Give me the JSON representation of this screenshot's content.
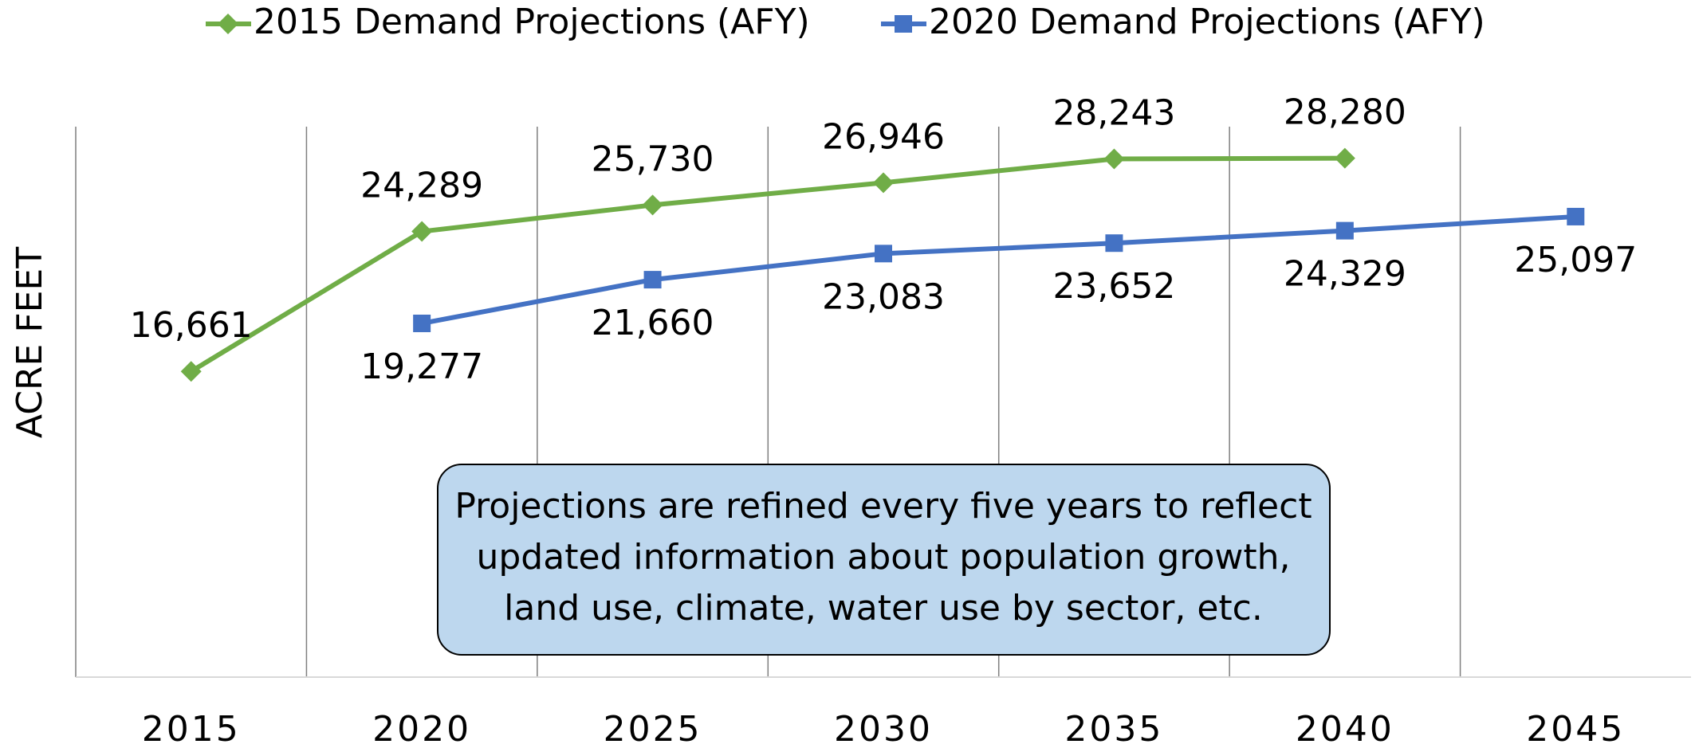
{
  "chart_data": {
    "type": "line",
    "y_label": "ACRE FEET",
    "categories": [
      "2015",
      "2020",
      "2025",
      "2030",
      "2035",
      "2040",
      "2045"
    ],
    "series": [
      {
        "name": "2015 Demand Projections (AFY)",
        "color": "#70ad47",
        "marker": "diamond",
        "label_position": "above",
        "values": [
          16661,
          24289,
          25730,
          26946,
          28243,
          28280,
          null
        ],
        "value_labels": [
          "16,661",
          "24,289",
          "25,730",
          "26,946",
          "28,243",
          "28,280",
          null
        ]
      },
      {
        "name": "2020 Demand Projections (AFY)",
        "color": "#4472c4",
        "marker": "square",
        "label_position": "below",
        "values": [
          null,
          19277,
          21660,
          23083,
          23652,
          24329,
          25097
        ],
        "value_labels": [
          null,
          "19,277",
          "21,660",
          "23,083",
          "23,652",
          "24,329",
          "25,097"
        ]
      }
    ],
    "ylim": [
      0,
      30000
    ],
    "annotation": [
      "Projections are refined every five years to reflect",
      "updated information about population growth,",
      "land use, climate, water use by sector, etc."
    ]
  }
}
